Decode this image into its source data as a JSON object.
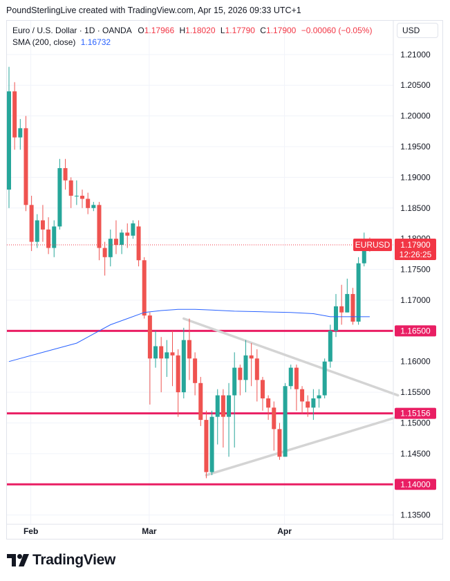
{
  "header": {
    "credit": "PoundSterlingLive created with TradingView.com, Apr 15, 2026 09:33 UTC+1"
  },
  "legend": {
    "symbol": "Euro / U.S. Dollar · 1D · OANDA",
    "open_label": "O",
    "open": "1.17966",
    "high_label": "H",
    "high": "1.18020",
    "low_label": "L",
    "low": "1.17790",
    "close_label": "C",
    "close": "1.17900",
    "change": "−0.00060 (−0.05%)",
    "ma_label": "SMA (200, close)",
    "ma_value": "1.16732"
  },
  "currency": "USD",
  "brand": {
    "name": "TradingView",
    "logo_icon": "tradingview-logo-icon"
  },
  "colors": {
    "up": "#26a69a",
    "down": "#ef5350",
    "level": "#e91e63",
    "sma": "#2962ff",
    "triangle": "#d4d4d4",
    "last_price": "#f23645"
  },
  "chart_data": {
    "type": "candlestick",
    "x_ticks": [
      "Feb",
      "Mar",
      "Apr"
    ],
    "y_ticks": [
      "1.21000",
      "1.20500",
      "1.20000",
      "1.19500",
      "1.19000",
      "1.18500",
      "1.18000",
      "1.17500",
      "1.17000",
      "1.16500",
      "1.16000",
      "1.15500",
      "1.15000",
      "1.14500",
      "1.14000",
      "1.13500"
    ],
    "ylim": [
      1.1335,
      1.2155
    ],
    "candles": [
      [
        1.188,
        1.204,
        1.208,
        1.185
      ],
      [
        1.204,
        1.1965,
        1.2055,
        1.1945
      ],
      [
        1.1965,
        1.198,
        1.1995,
        1.1945
      ],
      [
        1.198,
        1.1855,
        1.2,
        1.1845
      ],
      [
        1.1855,
        1.1795,
        1.187,
        1.178
      ],
      [
        1.1795,
        1.183,
        1.184,
        1.1785
      ],
      [
        1.183,
        1.1815,
        1.1855,
        1.1795
      ],
      [
        1.1815,
        1.1785,
        1.1835,
        1.1775
      ],
      [
        1.1785,
        1.182,
        1.183,
        1.177
      ],
      [
        1.182,
        1.1915,
        1.193,
        1.1815
      ],
      [
        1.1915,
        1.1895,
        1.193,
        1.188
      ],
      [
        1.1895,
        1.187,
        1.19,
        1.185
      ],
      [
        1.187,
        1.187,
        1.1895,
        1.1855
      ],
      [
        1.187,
        1.1865,
        1.188,
        1.185
      ],
      [
        1.1865,
        1.185,
        1.1875,
        1.184
      ],
      [
        1.185,
        1.1855,
        1.186,
        1.1845
      ],
      [
        1.1855,
        1.1785,
        1.186,
        1.1765
      ],
      [
        1.1785,
        1.177,
        1.1795,
        1.174
      ],
      [
        1.177,
        1.18,
        1.1815,
        1.1755
      ],
      [
        1.18,
        1.179,
        1.183,
        1.1775
      ],
      [
        1.179,
        1.181,
        1.1815,
        1.1775
      ],
      [
        1.181,
        1.1805,
        1.1825,
        1.1785
      ],
      [
        1.1805,
        1.1825,
        1.183,
        1.18
      ],
      [
        1.182,
        1.1765,
        1.183,
        1.1755
      ],
      [
        1.1765,
        1.1675,
        1.177,
        1.167
      ],
      [
        1.1675,
        1.1605,
        1.168,
        1.153
      ],
      [
        1.1605,
        1.1625,
        1.165,
        1.159
      ],
      [
        1.1625,
        1.1605,
        1.164,
        1.155
      ],
      [
        1.1605,
        1.1615,
        1.1635,
        1.1575
      ],
      [
        1.1615,
        1.161,
        1.165,
        1.156
      ],
      [
        1.161,
        1.155,
        1.162,
        1.151
      ],
      [
        1.155,
        1.1635,
        1.1655,
        1.154
      ],
      [
        1.1635,
        1.1605,
        1.167,
        1.157
      ],
      [
        1.1605,
        1.1565,
        1.1615,
        1.1545
      ],
      [
        1.1565,
        1.1505,
        1.1575,
        1.1495
      ],
      [
        1.1505,
        1.142,
        1.152,
        1.141
      ],
      [
        1.142,
        1.151,
        1.152,
        1.1415
      ],
      [
        1.151,
        1.1545,
        1.1555,
        1.1465
      ],
      [
        1.1545,
        1.151,
        1.1555,
        1.146
      ],
      [
        1.151,
        1.1545,
        1.1565,
        1.1445
      ],
      [
        1.1545,
        1.159,
        1.1615,
        1.146
      ],
      [
        1.159,
        1.157,
        1.1595,
        1.1545
      ],
      [
        1.157,
        1.161,
        1.1635,
        1.155
      ],
      [
        1.161,
        1.1605,
        1.163,
        1.156
      ],
      [
        1.1605,
        1.157,
        1.162,
        1.1535
      ],
      [
        1.157,
        1.154,
        1.1575,
        1.152
      ],
      [
        1.154,
        1.1525,
        1.1545,
        1.1505
      ],
      [
        1.1525,
        1.149,
        1.1535,
        1.1455
      ],
      [
        1.149,
        1.1445,
        1.15,
        1.144
      ],
      [
        1.1445,
        1.156,
        1.1565,
        1.1445
      ],
      [
        1.156,
        1.159,
        1.1595,
        1.1555
      ],
      [
        1.159,
        1.1555,
        1.1595,
        1.152
      ],
      [
        1.1555,
        1.1535,
        1.156,
        1.1515
      ],
      [
        1.1535,
        1.1525,
        1.1545,
        1.151
      ],
      [
        1.1525,
        1.154,
        1.1555,
        1.1505
      ],
      [
        1.154,
        1.1545,
        1.1555,
        1.1525
      ],
      [
        1.1545,
        1.16,
        1.1605,
        1.154
      ],
      [
        1.16,
        1.165,
        1.166,
        1.159
      ],
      [
        1.165,
        1.169,
        1.171,
        1.164
      ],
      [
        1.169,
        1.168,
        1.1725,
        1.166
      ],
      [
        1.168,
        1.171,
        1.1735,
        1.168
      ],
      [
        1.171,
        1.1665,
        1.172,
        1.166
      ],
      [
        1.1665,
        1.176,
        1.177,
        1.166
      ],
      [
        1.176,
        1.1795,
        1.181,
        1.1755
      ],
      [
        1.1797,
        1.179,
        1.1802,
        1.1779
      ]
    ],
    "sma": {
      "name": "SMA (200, close)",
      "points": [
        [
          0,
          1.16
        ],
        [
          6,
          1.1615
        ],
        [
          12,
          1.163
        ],
        [
          18,
          1.166
        ],
        [
          21,
          1.167
        ],
        [
          24,
          1.168
        ],
        [
          27,
          1.1683
        ],
        [
          30,
          1.1685
        ],
        [
          33,
          1.1685
        ],
        [
          36,
          1.1684
        ],
        [
          40,
          1.1682
        ],
        [
          45,
          1.1681
        ],
        [
          50,
          1.168
        ],
        [
          54,
          1.1678
        ],
        [
          57,
          1.1673
        ],
        [
          60,
          1.1673
        ],
        [
          64,
          1.1673
        ]
      ]
    },
    "triangle": [
      [
        [
          31,
          1.167
        ],
        [
          69,
          1.1545
        ]
      ],
      [
        [
          35,
          1.1415
        ],
        [
          69,
          1.151
        ]
      ]
    ],
    "levels": [
      {
        "value": 1.165,
        "label": "1.16500"
      },
      {
        "value": 1.15156,
        "label": "1.15156"
      },
      {
        "value": 1.14,
        "label": "1.14000"
      }
    ],
    "last_price": {
      "value": 1.179,
      "symbol": "EURUSD",
      "label": "1.17900",
      "countdown": "12:26:25"
    }
  }
}
